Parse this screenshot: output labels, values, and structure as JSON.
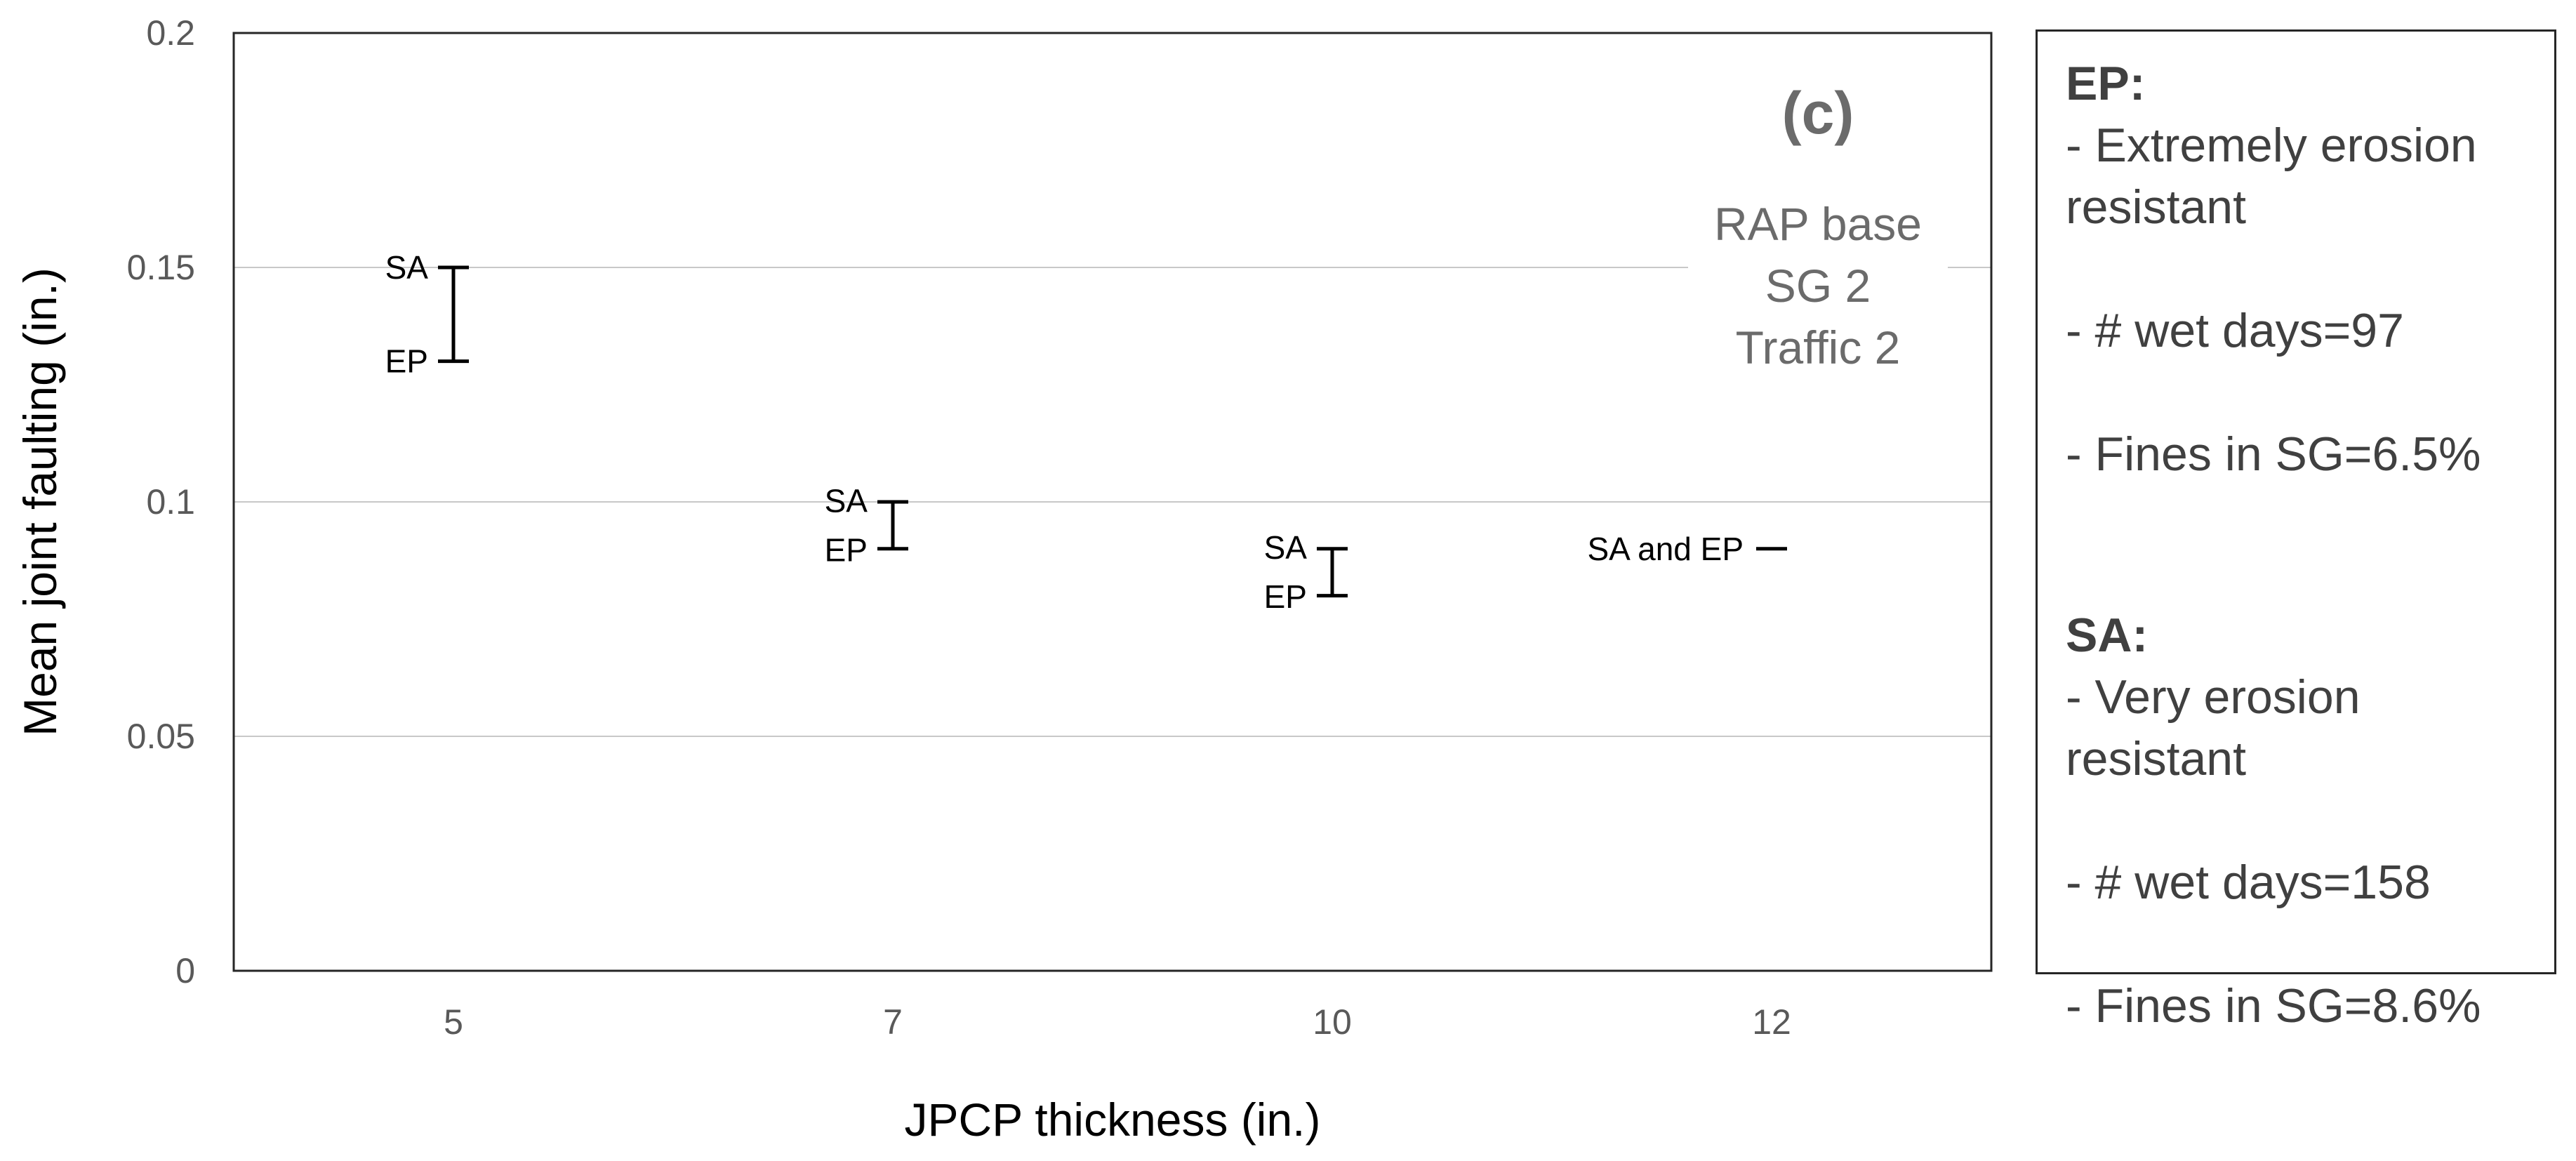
{
  "chart_data": {
    "type": "range",
    "xlabel": "JPCP thickness (in.)",
    "ylabel": "Mean joint faulting (in.)",
    "ylim": [
      0,
      0.2
    ],
    "yticks": [
      "0",
      "0.05",
      "0.1",
      "0.15",
      "0.2"
    ],
    "categories": [
      "5",
      "7",
      "10",
      "12"
    ],
    "grid": true,
    "ranges": [
      {
        "x": "5",
        "high": 0.15,
        "low": 0.13,
        "high_label": "SA",
        "low_label": "EP"
      },
      {
        "x": "7",
        "high": 0.1,
        "low": 0.09,
        "high_label": "SA",
        "low_label": "EP"
      },
      {
        "x": "10",
        "high": 0.09,
        "low": 0.08,
        "high_label": "SA",
        "low_label": "EP"
      },
      {
        "x": "12",
        "high": 0.09,
        "low": 0.09,
        "label": "SA and EP"
      }
    ],
    "panel_label": "(c)",
    "annotation_lines": [
      "RAP base",
      "SG 2",
      "Traffic 2"
    ]
  },
  "legend_box": {
    "ep_title": "EP:",
    "ep_line1": "- Extremely erosion resistant",
    "ep_line2": "- # wet days=97",
    "ep_line3": "- Fines in SG=6.5%",
    "sa_title": "SA:",
    "sa_line1": "- Very erosion resistant",
    "sa_line2": "- # wet days=158",
    "sa_line3": "- Fines in SG=8.6%"
  }
}
